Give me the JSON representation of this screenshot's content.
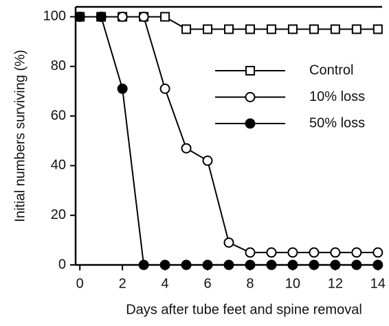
{
  "chart_data": {
    "type": "line",
    "x_label": "Days after tube feet and spine removal",
    "y_label": "Initial numbers surviving (%)",
    "x": [
      0,
      1,
      2,
      3,
      4,
      5,
      6,
      7,
      8,
      9,
      10,
      11,
      12,
      13,
      14
    ],
    "series": [
      {
        "name": "Control",
        "color": "#000000",
        "marker": "square",
        "marker_fill": "#ffffff",
        "values": [
          100,
          100,
          100,
          100,
          100,
          95,
          95,
          95,
          95,
          95,
          95,
          95,
          95,
          95,
          95
        ]
      },
      {
        "name": "10% loss",
        "color": "#000000",
        "marker": "circle",
        "marker_fill": "#ffffff",
        "values": [
          100,
          100,
          100,
          100,
          71,
          47,
          42,
          9,
          5,
          5,
          5,
          5,
          5,
          5,
          5
        ]
      },
      {
        "name": "50% loss",
        "color": "#000000",
        "marker": "circle",
        "marker_fill": "#000000",
        "values": [
          100,
          100,
          71,
          0,
          0,
          0,
          0,
          0,
          0,
          0,
          0,
          0,
          0,
          0,
          0
        ]
      }
    ],
    "xlim": [
      -0.2,
      14.2
    ],
    "xticks": [
      0,
      2,
      4,
      6,
      8,
      10,
      12,
      14
    ],
    "ylim": [
      0,
      104
    ],
    "yticks": [
      0,
      20,
      40,
      60,
      80,
      100
    ],
    "grid": false,
    "legend": "upper right"
  }
}
